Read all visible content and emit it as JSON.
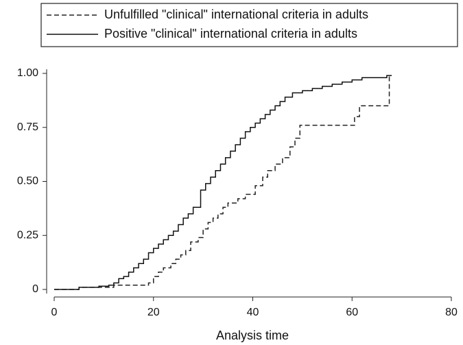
{
  "chart_data": {
    "type": "step-line",
    "xlabel": "Analysis time",
    "xlim": [
      0,
      80
    ],
    "xticks": [
      0,
      20,
      40,
      60,
      80
    ],
    "ylim": [
      0,
      1
    ],
    "yticks": [
      0,
      {
        "value": 0.25,
        "label": "0.25"
      },
      {
        "value": 0.5,
        "label": "0.50"
      },
      {
        "value": 0.75,
        "label": "0.75"
      },
      {
        "value": 1,
        "label": "1.00"
      }
    ],
    "series": [
      {
        "name": "Unfulfilled \"clinical\" international criteria in adults",
        "color": "#222222",
        "dash": "dashed",
        "x": [
          0,
          5,
          12,
          19,
          20,
          21,
          22,
          23.5,
          24.5,
          25.5,
          26.5,
          27.5,
          29,
          30,
          31,
          32,
          33,
          34,
          35,
          37,
          38.5,
          40.5,
          42,
          43,
          44.5,
          46,
          47.5,
          48.5,
          49.5,
          60.5,
          61.5,
          67.5
        ],
        "values": [
          0,
          0.01,
          0.02,
          0.03,
          0.06,
          0.08,
          0.1,
          0.12,
          0.14,
          0.16,
          0.18,
          0.22,
          0.24,
          0.28,
          0.31,
          0.33,
          0.35,
          0.38,
          0.4,
          0.42,
          0.44,
          0.48,
          0.52,
          0.55,
          0.58,
          0.61,
          0.66,
          0.7,
          0.76,
          0.8,
          0.85,
          0.99
        ]
      },
      {
        "name": "Positive \"clinical\" international criteria in adults",
        "color": "#111111",
        "dash": "solid",
        "x": [
          0,
          5,
          9,
          11,
          12,
          13,
          14,
          15,
          16,
          17,
          18,
          19,
          20,
          21,
          22,
          23,
          24,
          25,
          26,
          27,
          28,
          29.5,
          30.5,
          31.5,
          32.5,
          33.5,
          34.5,
          35.5,
          36.5,
          37.5,
          38.5,
          39.5,
          40.5,
          41.5,
          42.5,
          43.5,
          44.5,
          45.5,
          46.5,
          48,
          50,
          52,
          54,
          56,
          58,
          60,
          62,
          67,
          68
        ],
        "values": [
          0,
          0.01,
          0.015,
          0.02,
          0.03,
          0.05,
          0.06,
          0.08,
          0.1,
          0.12,
          0.14,
          0.17,
          0.19,
          0.21,
          0.23,
          0.25,
          0.27,
          0.3,
          0.33,
          0.35,
          0.38,
          0.46,
          0.49,
          0.52,
          0.55,
          0.58,
          0.61,
          0.64,
          0.67,
          0.7,
          0.73,
          0.75,
          0.77,
          0.79,
          0.81,
          0.83,
          0.85,
          0.87,
          0.89,
          0.91,
          0.92,
          0.93,
          0.94,
          0.95,
          0.96,
          0.97,
          0.98,
          0.99,
          0.99
        ]
      }
    ]
  }
}
